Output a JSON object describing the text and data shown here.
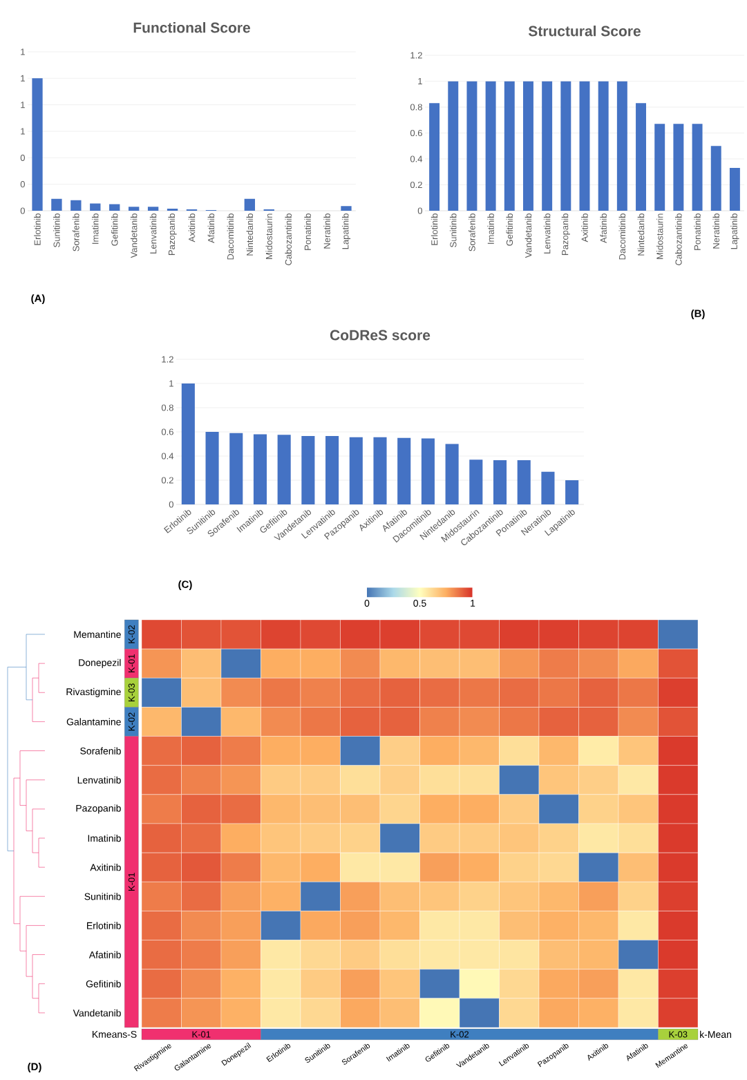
{
  "chart_data": [
    {
      "type": "bar",
      "title": "Functional Score",
      "categories": [
        "Erlotinib",
        "Sunitinib",
        "Sorafenib",
        "Imatinib",
        "Gefitinib",
        "Vandetanib",
        "Lenvatinib",
        "Pazopanib",
        "Axitinib",
        "Afatinib",
        "Dacomitinib",
        "Nintedanib",
        "Midostaurin",
        "Cabozantinib",
        "Ponatinib",
        "Neratinib",
        "Lapatinib"
      ],
      "values": [
        1.0,
        0.09,
        0.08,
        0.055,
        0.05,
        0.03,
        0.03,
        0.015,
        0.01,
        0.005,
        0,
        0.09,
        0.01,
        0,
        0,
        0,
        0.035
      ],
      "color": "#4472c4",
      "ylim": [
        0,
        1.2
      ],
      "yticks": [
        {
          "value": 0,
          "label": "0"
        },
        {
          "value": 0.2,
          "label": "0"
        },
        {
          "value": 0.4,
          "label": "0"
        },
        {
          "value": 0.6,
          "label": "1"
        },
        {
          "value": 0.8,
          "label": "1"
        },
        {
          "value": 1.0,
          "label": "1"
        },
        {
          "value": 1.2,
          "label": "1"
        }
      ],
      "grid": "y",
      "annotations": [
        "(A)"
      ]
    },
    {
      "type": "bar",
      "title": "Structural Score",
      "categories": [
        "Erlotinib",
        "Sunitinib",
        "Sorafenib",
        "Imatinib",
        "Gefitinib",
        "Vandetanib",
        "Lenvatinib",
        "Pazopanib",
        "Axitinib",
        "Afatinib",
        "Dacomitinib",
        "Nintedanib",
        "Midostaurin",
        "Cabozantinib",
        "Ponatinib",
        "Neratinib",
        "Lapatinib"
      ],
      "values": [
        0.83,
        1,
        1,
        1,
        1,
        1,
        1,
        1,
        1,
        1,
        1,
        0.83,
        0.67,
        0.67,
        0.67,
        0.5,
        0.33
      ],
      "color": "#4472c4",
      "ylim": [
        0,
        1.2
      ],
      "yticks": [
        0,
        0.2,
        0.4,
        0.6,
        0.8,
        1,
        1.2
      ],
      "grid": "y",
      "annotations": [
        "(B)"
      ]
    },
    {
      "type": "bar",
      "title": "CoDReS score",
      "categories": [
        "Erlotinib",
        "Sunitinib",
        "Sorafenib",
        "Imatinib",
        "Gefitinib",
        "Vandetanib",
        "Lenvatinib",
        "Pazopanib",
        "Axitinib",
        "Afatinib",
        "Dacomitinib",
        "Nintedanib",
        "Midostaurin",
        "Cabozantinib",
        "Ponatinib",
        "Neratinib",
        "Lapatinib"
      ],
      "values": [
        1.0,
        0.6,
        0.59,
        0.58,
        0.575,
        0.565,
        0.565,
        0.555,
        0.555,
        0.55,
        0.545,
        0.5,
        0.37,
        0.365,
        0.365,
        0.27,
        0.2
      ],
      "color": "#4472c4",
      "ylim": [
        0,
        1.2
      ],
      "yticks": [
        0,
        0.2,
        0.4,
        0.6,
        0.8,
        1,
        1.2
      ],
      "grid": "y",
      "annotations": [
        "(C)"
      ]
    },
    {
      "type": "heatmap",
      "categories": [
        "Rivastigmine",
        "Galantamine",
        "Donepezil",
        "Erlotinib",
        "Sunitinib",
        "Sorafenib",
        "Imatinib",
        "Gefitinib",
        "Vandetanib",
        "Lenvatinib",
        "Pazopanib",
        "Axitinib",
        "Afatinib",
        "Memantine"
      ],
      "y_categories": [
        "Memantine",
        "Donepezil",
        "Rivastigmine",
        "Galantamine",
        "Sorafenib",
        "Lenvatinib",
        "Pazopanib",
        "Imatinib",
        "Axitinib",
        "Sunitinib",
        "Erlotinib",
        "Afatinib",
        "Gefitinib",
        "Vandetanib"
      ],
      "cells": [
        [
          0.95,
          0.93,
          0.93,
          0.96,
          0.95,
          0.97,
          0.97,
          0.95,
          0.95,
          0.97,
          0.97,
          0.96,
          0.96,
          0
        ],
        [
          0.8,
          0.7,
          0,
          0.75,
          0.75,
          0.82,
          0.72,
          0.7,
          0.7,
          0.8,
          0.85,
          0.82,
          0.76,
          0.93
        ],
        [
          0,
          0.7,
          0.82,
          0.86,
          0.84,
          0.88,
          0.9,
          0.88,
          0.86,
          0.88,
          0.86,
          0.9,
          0.86,
          0.97
        ],
        [
          0.72,
          0,
          0.72,
          0.82,
          0.86,
          0.9,
          0.9,
          0.84,
          0.82,
          0.86,
          0.9,
          0.9,
          0.82,
          0.93
        ],
        [
          0.88,
          0.9,
          0.85,
          0.75,
          0.75,
          0,
          0.65,
          0.75,
          0.72,
          0.6,
          0.72,
          0.56,
          0.68,
          0.98
        ],
        [
          0.88,
          0.84,
          0.8,
          0.66,
          0.66,
          0.6,
          0.65,
          0.6,
          0.6,
          0,
          0.68,
          0.65,
          0.57,
          0.98
        ],
        [
          0.85,
          0.9,
          0.88,
          0.72,
          0.7,
          0.7,
          0.63,
          0.75,
          0.75,
          0.66,
          0,
          0.64,
          0.68,
          0.98
        ],
        [
          0.9,
          0.88,
          0.75,
          0.68,
          0.66,
          0.64,
          0,
          0.66,
          0.66,
          0.68,
          0.64,
          0.57,
          0.6,
          0.98
        ],
        [
          0.9,
          0.92,
          0.85,
          0.72,
          0.75,
          0.57,
          0.57,
          0.78,
          0.75,
          0.64,
          0.62,
          0,
          0.7,
          0.98
        ],
        [
          0.85,
          0.88,
          0.78,
          0.74,
          0,
          0.78,
          0.7,
          0.68,
          0.64,
          0.68,
          0.72,
          0.78,
          0.64,
          0.97
        ],
        [
          0.88,
          0.82,
          0.78,
          0,
          0.76,
          0.78,
          0.72,
          0.57,
          0.57,
          0.7,
          0.74,
          0.72,
          0.57,
          0.98
        ],
        [
          0.88,
          0.85,
          0.78,
          0.57,
          0.62,
          0.66,
          0.6,
          0.57,
          0.57,
          0.58,
          0.7,
          0.72,
          0,
          0.98
        ],
        [
          0.88,
          0.82,
          0.74,
          0.57,
          0.66,
          0.78,
          0.68,
          0,
          0.52,
          0.62,
          0.76,
          0.78,
          0.57,
          0.97
        ],
        [
          0.85,
          0.8,
          0.74,
          0.57,
          0.62,
          0.76,
          0.7,
          0.52,
          0,
          0.62,
          0.76,
          0.74,
          0.57,
          0.97
        ]
      ],
      "clim": [
        0,
        1
      ],
      "cticks": [
        0,
        0.5,
        1
      ],
      "annotations": [
        "(D)",
        "k-Mean",
        "Kmeans-S",
        "K-02",
        "K-01",
        "K-03",
        "K-02",
        "K-01",
        "K-01",
        "K-02",
        "K-03"
      ]
    }
  ]
}
